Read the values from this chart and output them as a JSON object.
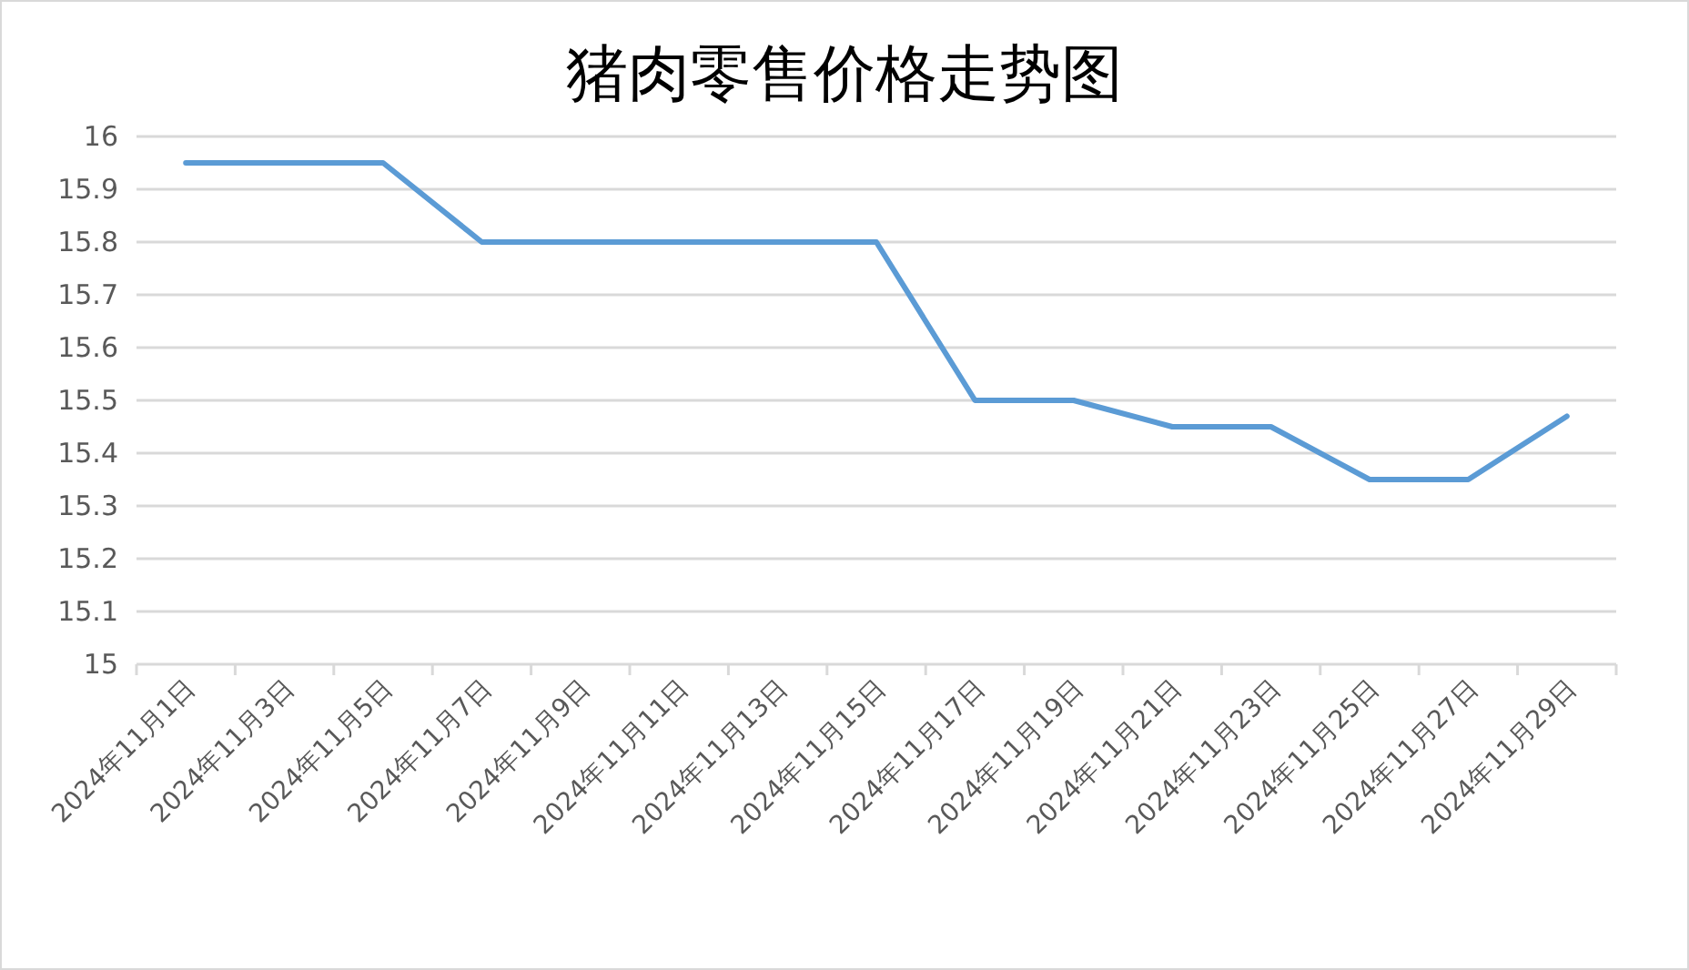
{
  "chart_data": {
    "type": "line",
    "title": "猪肉零售价格走势图",
    "categories": [
      "2024年11月1日",
      "2024年11月3日",
      "2024年11月5日",
      "2024年11月7日",
      "2024年11月9日",
      "2024年11月11日",
      "2024年11月13日",
      "2024年11月15日",
      "2024年11月17日",
      "2024年11月19日",
      "2024年11月21日",
      "2024年11月23日",
      "2024年11月25日",
      "2024年11月27日",
      "2024年11月29日"
    ],
    "values": [
      15.95,
      15.95,
      15.95,
      15.8,
      15.8,
      15.8,
      15.8,
      15.8,
      15.5,
      15.5,
      15.45,
      15.45,
      15.35,
      15.35,
      15.47
    ],
    "color": "#5b9bd5",
    "ylim": [
      15,
      16
    ],
    "yticks": [
      15,
      15.1,
      15.2,
      15.3,
      15.4,
      15.5,
      15.6,
      15.7,
      15.8,
      15.9,
      16
    ],
    "grid": "y"
  }
}
